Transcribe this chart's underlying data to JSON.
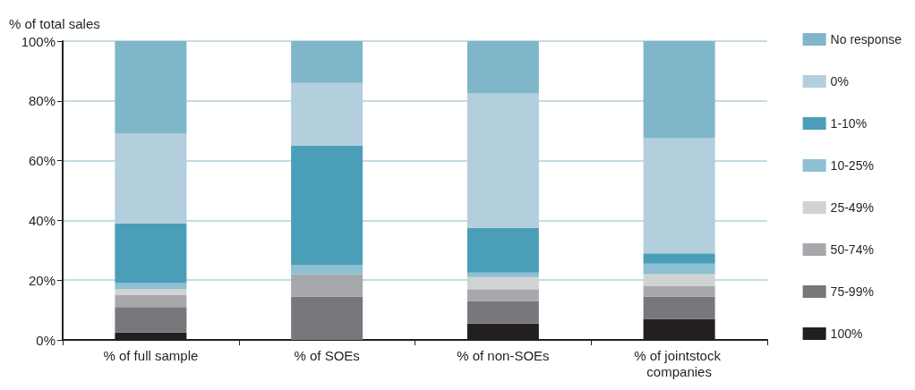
{
  "chart_data": {
    "type": "bar",
    "stacked": true,
    "ylabel": "% of total sales",
    "categories": [
      "% of full sample",
      "% of SOEs",
      "% of non-SOEs",
      "% of jointstock companies"
    ],
    "series": [
      {
        "name": "100%",
        "color": "#231f20",
        "values": [
          2.5,
          0,
          5.5,
          7
        ]
      },
      {
        "name": "75-99%",
        "color": "#77787b",
        "values": [
          8.5,
          14.5,
          7.5,
          7.5
        ]
      },
      {
        "name": "50-74%",
        "color": "#a7a8ab",
        "values": [
          4,
          7.5,
          4,
          3.5
        ]
      },
      {
        "name": "25-49%",
        "color": "#d1d2d4",
        "values": [
          2,
          0,
          4,
          4
        ]
      },
      {
        "name": "10-25%",
        "color": "#8cc0d2",
        "values": [
          2,
          3,
          1.5,
          3.5
        ]
      },
      {
        "name": "1-10%",
        "color": "#4a9eb8",
        "values": [
          20,
          40,
          15,
          3.5
        ]
      },
      {
        "name": "0%",
        "color": "#b3cedc",
        "values": [
          30,
          21,
          45,
          38.5
        ]
      },
      {
        "name": "No response",
        "color": "#7fb6ca",
        "values": [
          31,
          14,
          17.5,
          32.5
        ]
      }
    ],
    "ylim": [
      0,
      100
    ],
    "yticks": [
      {
        "value": 0,
        "label": "0%"
      },
      {
        "value": 20,
        "label": "20%"
      },
      {
        "value": 40,
        "label": "40%"
      },
      {
        "value": 60,
        "label": "60%"
      },
      {
        "value": 80,
        "label": "80%"
      },
      {
        "value": 100,
        "label": "100%"
      }
    ],
    "grid": "y",
    "legend": "right"
  }
}
